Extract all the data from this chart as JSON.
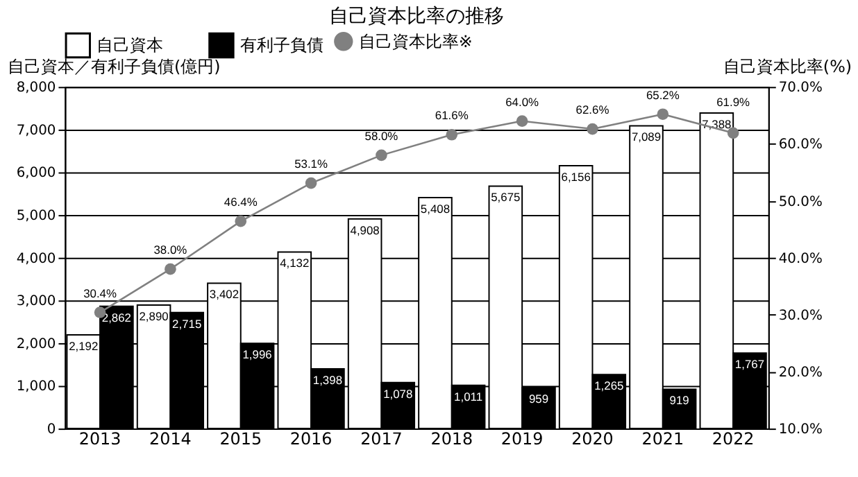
{
  "chart_data": {
    "type": "bar",
    "title": "自己資本比率の推移",
    "ylabel": "自己資本／有利子負債(億円)",
    "y2label": "自己資本比率(%)",
    "categories": [
      "2013",
      "2014",
      "2015",
      "2016",
      "2017",
      "2018",
      "2019",
      "2020",
      "2021",
      "2022"
    ],
    "series": [
      {
        "name": "自己資本",
        "color": "#ffffff",
        "values": [
          2192,
          2890,
          3402,
          4132,
          4908,
          5408,
          5675,
          6156,
          7089,
          7388
        ],
        "value_labels": [
          "2,192",
          "2,890",
          "3,402",
          "4,132",
          "4,908",
          "5,408",
          "5,675",
          "6,156",
          "7,089",
          "7,388"
        ]
      },
      {
        "name": "有利子負債",
        "color": "#000000",
        "values": [
          2862,
          2715,
          1996,
          1398,
          1078,
          1011,
          959,
          1265,
          919,
          1767
        ],
        "value_labels": [
          "2,862",
          "2,715",
          "1,996",
          "1,398",
          "1,078",
          "1,011",
          "959",
          "1,265",
          "919",
          "1,767"
        ]
      },
      {
        "name": "自己資本比率※",
        "type": "line",
        "axis": "y2",
        "color": "#808080",
        "values": [
          30.4,
          38.0,
          46.4,
          53.1,
          58.0,
          61.6,
          64.0,
          62.6,
          65.2,
          61.9
        ],
        "value_labels": [
          "30.4%",
          "38.0%",
          "46.4%",
          "53.1%",
          "58.0%",
          "61.6%",
          "64.0%",
          "62.6%",
          "65.2%",
          "61.9%"
        ]
      }
    ],
    "ylim": [
      0,
      8000
    ],
    "yticks": [
      0,
      {
        "value": 1000,
        "label": "1,000"
      },
      {
        "value": 2000,
        "label": "2,000"
      },
      {
        "value": 3000,
        "label": "3,000"
      },
      {
        "value": 4000,
        "label": "4,000"
      },
      {
        "value": 5000,
        "label": "5,000"
      },
      {
        "value": 6000,
        "label": "6,000"
      },
      {
        "value": 7000,
        "label": "7,000"
      },
      {
        "value": 8000,
        "label": "8,000"
      }
    ],
    "y2lim": [
      10,
      70
    ],
    "y2ticks": [
      {
        "value": 10,
        "label": "10.0%"
      },
      {
        "value": 20,
        "label": "20.0%"
      },
      {
        "value": 30,
        "label": "30.0%"
      },
      {
        "value": 40,
        "label": "40.0%"
      },
      {
        "value": 50,
        "label": "50.0%"
      },
      {
        "value": 60,
        "label": "60.0%"
      },
      {
        "value": 70,
        "label": "70.0%"
      }
    ],
    "grid": "y",
    "legend": "top",
    "marker": "circle",
    "line_style": "solid"
  }
}
